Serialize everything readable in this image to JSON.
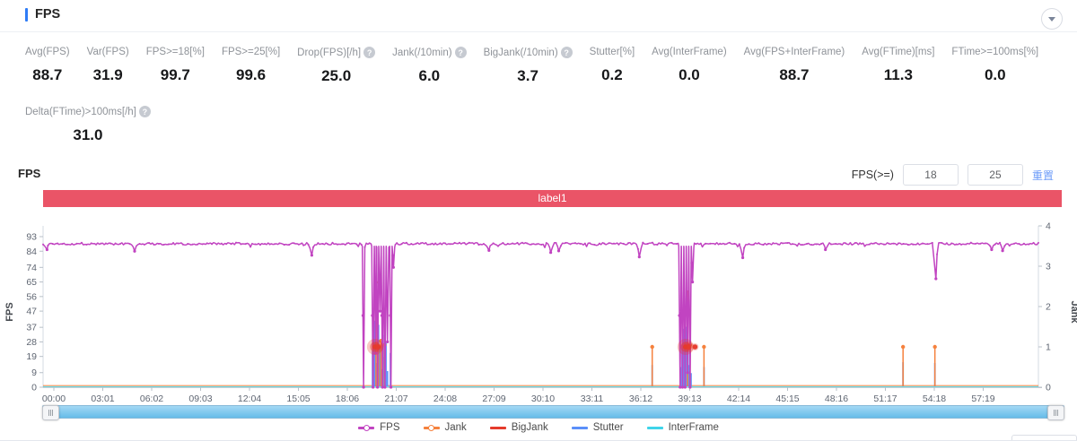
{
  "panel": {
    "title": "FPS"
  },
  "stats": {
    "row1": [
      {
        "label": "Avg(FPS)",
        "value": "88.7",
        "help": false
      },
      {
        "label": "Var(FPS)",
        "value": "31.9",
        "help": false
      },
      {
        "label": "FPS>=18[%]",
        "value": "99.7",
        "help": false
      },
      {
        "label": "FPS>=25[%]",
        "value": "99.6",
        "help": false
      },
      {
        "label": "Drop(FPS)[/h]",
        "value": "25.0",
        "help": true
      },
      {
        "label": "Jank(/10min)",
        "value": "6.0",
        "help": true
      },
      {
        "label": "BigJank(/10min)",
        "value": "3.7",
        "help": true
      },
      {
        "label": "Stutter[%]",
        "value": "0.2",
        "help": false
      },
      {
        "label": "Avg(InterFrame)",
        "value": "0.0",
        "help": false
      },
      {
        "label": "Avg(FPS+InterFrame)",
        "value": "88.7",
        "help": false
      },
      {
        "label": "Avg(FTime)[ms]",
        "value": "11.3",
        "help": false
      },
      {
        "label": "FTime>=100ms[%]",
        "value": "0.0",
        "help": false
      }
    ],
    "row2": [
      {
        "label": "Delta(FTime)>100ms[/h]",
        "value": "31.0",
        "help": true
      }
    ]
  },
  "chart_header": {
    "title": "FPS",
    "threshold_label": "FPS(>=)",
    "threshold_values": [
      "18",
      "25"
    ],
    "reset_link": "重置"
  },
  "banner": {
    "text": "label1",
    "color": "#ea5467"
  },
  "chart_data": {
    "type": "line",
    "title": "label1",
    "x_axis": {
      "labels": [
        "00:00",
        "03:01",
        "06:02",
        "09:03",
        "12:04",
        "15:05",
        "18:06",
        "21:07",
        "24:08",
        "27:09",
        "30:10",
        "33:11",
        "36:12",
        "39:13",
        "42:14",
        "45:15",
        "48:16",
        "51:17",
        "54:18",
        "57:19"
      ]
    },
    "y_left": {
      "label": "FPS",
      "max": 93,
      "ticks": [
        0,
        9,
        19,
        28,
        37,
        47,
        56,
        65,
        74,
        84,
        93
      ]
    },
    "y_right": {
      "label": "Jank",
      "max": 4,
      "ticks": [
        0,
        1,
        2,
        3,
        4
      ]
    },
    "series": {
      "fps": {
        "name": "FPS",
        "color": "#c144c1",
        "baseline": 88.6,
        "noise": 0.7,
        "dips": [
          [
            0.004,
            85
          ],
          [
            0.092,
            84
          ],
          [
            0.27,
            81.5
          ],
          [
            0.448,
            84.5
          ],
          [
            0.51,
            83.2
          ],
          [
            0.518,
            84.2
          ],
          [
            0.599,
            80.5
          ],
          [
            0.703,
            80
          ],
          [
            0.786,
            85
          ],
          [
            0.897,
            67
          ],
          [
            0.953,
            85
          ],
          [
            0.964,
            84.3
          ]
        ],
        "drops": [
          [
            0.322,
            0
          ],
          [
            0.3315,
            0
          ],
          [
            0.334,
            21
          ],
          [
            0.336,
            0
          ],
          [
            0.3385,
            47
          ],
          [
            0.341,
            0
          ],
          [
            0.3435,
            0
          ],
          [
            0.346,
            28
          ],
          [
            0.3495,
            0
          ],
          [
            0.352,
            74
          ],
          [
            0.64,
            0
          ],
          [
            0.6425,
            0
          ],
          [
            0.645,
            0
          ],
          [
            0.6475,
            9
          ],
          [
            0.65,
            0
          ],
          [
            0.6525,
            65
          ]
        ]
      },
      "jank": {
        "name": "Jank",
        "color": "#f5813d",
        "spikes": [
          [
            0.3345,
            2.6
          ],
          [
            0.337,
            1.0
          ],
          [
            0.3395,
            1.15
          ],
          [
            0.343,
            1.05
          ],
          [
            0.612,
            1.0
          ],
          [
            0.6475,
            2.35
          ],
          [
            0.65,
            1.05
          ],
          [
            0.664,
            1.0
          ],
          [
            0.864,
            1.0
          ],
          [
            0.896,
            1.0
          ]
        ]
      },
      "bigjank": {
        "name": "BigJank",
        "color": "#e53b2c",
        "level": 1,
        "events": [
          [
            0.3335,
            9
          ],
          [
            0.3365,
            6
          ],
          [
            0.6455,
            9
          ],
          [
            0.6485,
            6
          ],
          [
            0.655,
            4
          ]
        ]
      },
      "stutter": {
        "name": "Stutter",
        "color": "#5b8ff9",
        "spikes": [
          [
            0.331,
            0.9
          ],
          [
            0.3325,
            1.65
          ],
          [
            0.334,
            1.25
          ],
          [
            0.3355,
            0.6
          ],
          [
            0.337,
            1.55
          ],
          [
            0.3385,
            1.0
          ],
          [
            0.34,
            0.45
          ],
          [
            0.3415,
            1.3
          ],
          [
            0.343,
            0.75
          ],
          [
            0.3445,
            1.1
          ],
          [
            0.346,
            0.4
          ],
          [
            0.349,
            0.85
          ],
          [
            0.6405,
            0.5
          ],
          [
            0.642,
            1.05
          ],
          [
            0.6435,
            1.45
          ],
          [
            0.645,
            0.8
          ],
          [
            0.6465,
            1.5
          ],
          [
            0.648,
            0.55
          ],
          [
            0.6495,
            0.95
          ],
          [
            0.651,
            0.35
          ],
          [
            0.612,
            0.55
          ],
          [
            0.664,
            0.5
          ],
          [
            0.864,
            0.62
          ],
          [
            0.896,
            0.6
          ]
        ]
      },
      "interframe": {
        "name": "InterFrame",
        "color": "#3fd4e9",
        "baseline": 0
      }
    }
  },
  "legend": [
    {
      "name": "FPS",
      "color": "#c144c1",
      "marker": "dot-line"
    },
    {
      "name": "Jank",
      "color": "#f5813d",
      "marker": "dot-line"
    },
    {
      "name": "BigJank",
      "color": "#e53b2c",
      "marker": "line"
    },
    {
      "name": "Stutter",
      "color": "#5b8ff9",
      "marker": "line"
    },
    {
      "name": "InterFrame",
      "color": "#3fd4e9",
      "marker": "line"
    }
  ]
}
